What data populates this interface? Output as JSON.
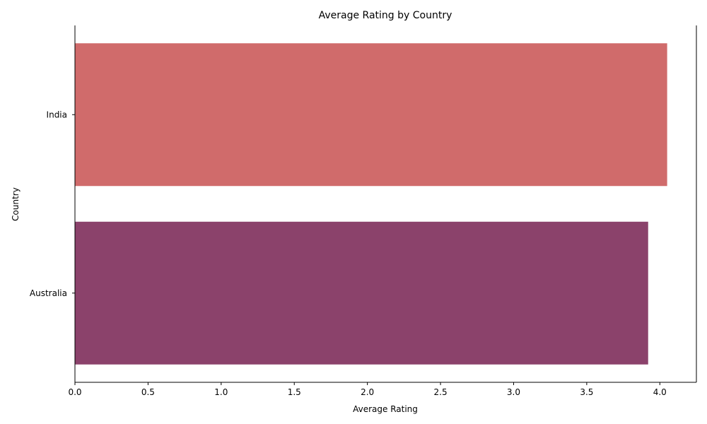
{
  "chart_data": {
    "type": "bar",
    "orientation": "horizontal",
    "title": "Average Rating by Country",
    "xlabel": "Average Rating",
    "ylabel": "Country",
    "categories": [
      "India",
      "Australia"
    ],
    "values": [
      4.05,
      3.92
    ],
    "xlim": [
      0,
      4.25
    ],
    "xticks": [
      "0.0",
      "0.5",
      "1.0",
      "1.5",
      "2.0",
      "2.5",
      "3.0",
      "3.5",
      "4.0"
    ],
    "grid": false,
    "legend": "none"
  },
  "colors": {
    "bars": [
      "#d06b6b",
      "#8b426b"
    ],
    "axis": "#000000"
  }
}
